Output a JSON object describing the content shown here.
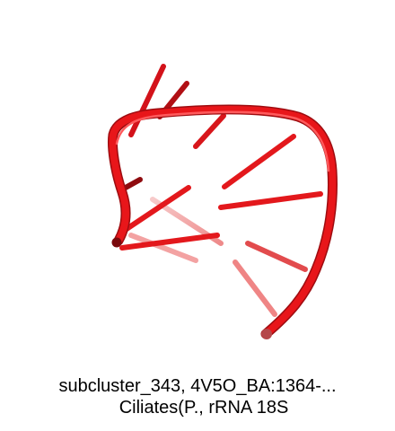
{
  "caption": {
    "line1": "subcluster_343, 4V5O_BA:1364-...",
    "line2": "Ciliates(P., rRNA 18S"
  },
  "colors": {
    "backbone": "#e8161a",
    "backbone_dark": "#a30d10",
    "base_far": "#f3a7a7",
    "background": "#ffffff"
  },
  "image": {
    "subject": "rna-3d-structure-render"
  }
}
